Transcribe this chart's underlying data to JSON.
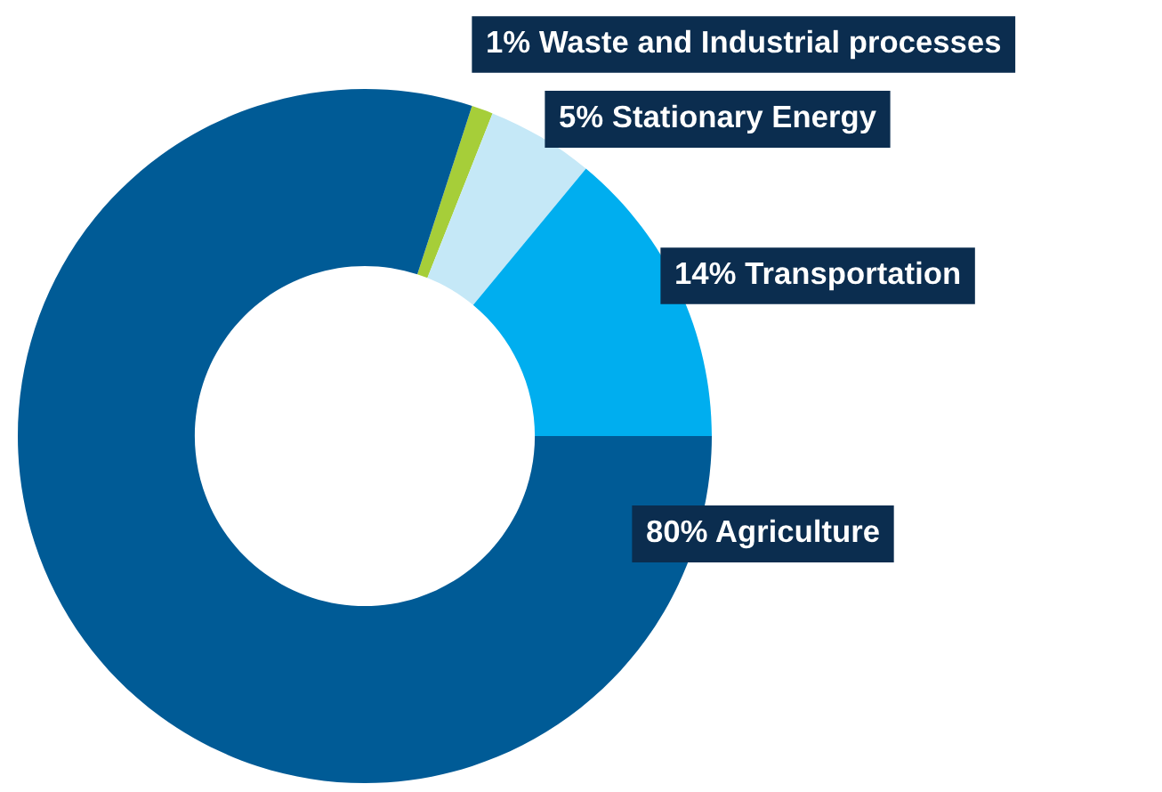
{
  "chart_data": {
    "type": "donut",
    "categories": [
      "Waste and Industrial processes",
      "Stationary Energy",
      "Transportation",
      "Agriculture"
    ],
    "values": [
      1,
      5,
      14,
      80
    ],
    "value_labels": [
      "1%",
      "5%",
      "14%",
      "80%"
    ],
    "colors": [
      "#a6ce39",
      "#c5e8f7",
      "#00aeef",
      "#005b96"
    ]
  }
}
